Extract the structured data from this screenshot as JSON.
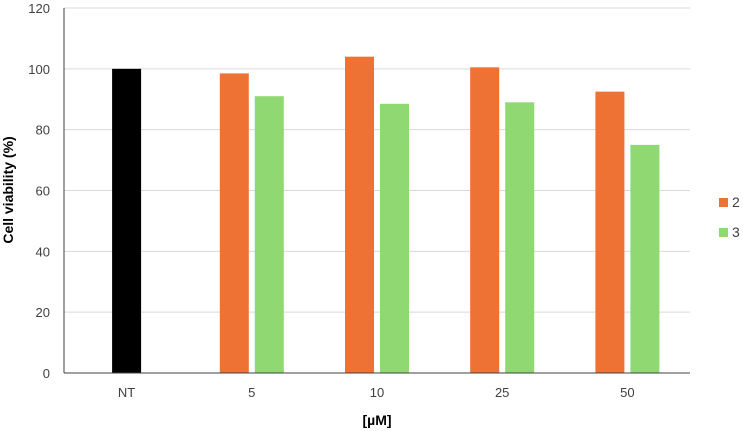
{
  "chart_data": {
    "type": "bar",
    "title": "",
    "xlabel": "[µM]",
    "ylabel": "Cell viability (%)",
    "ylim": [
      0,
      120
    ],
    "yticks": [
      0,
      20,
      40,
      60,
      80,
      100,
      120
    ],
    "grid": true,
    "legend_position": "right",
    "categories": [
      "NT",
      "5",
      "10",
      "25",
      "50"
    ],
    "control": {
      "category": "NT",
      "value": 100,
      "color": "#000000"
    },
    "series": [
      {
        "name": "2",
        "color": "#ED7234",
        "values": [
          null,
          98.5,
          104,
          100.5,
          92.5
        ]
      },
      {
        "name": "3",
        "color": "#8FD872",
        "values": [
          null,
          91,
          88.5,
          89,
          75
        ]
      }
    ]
  }
}
